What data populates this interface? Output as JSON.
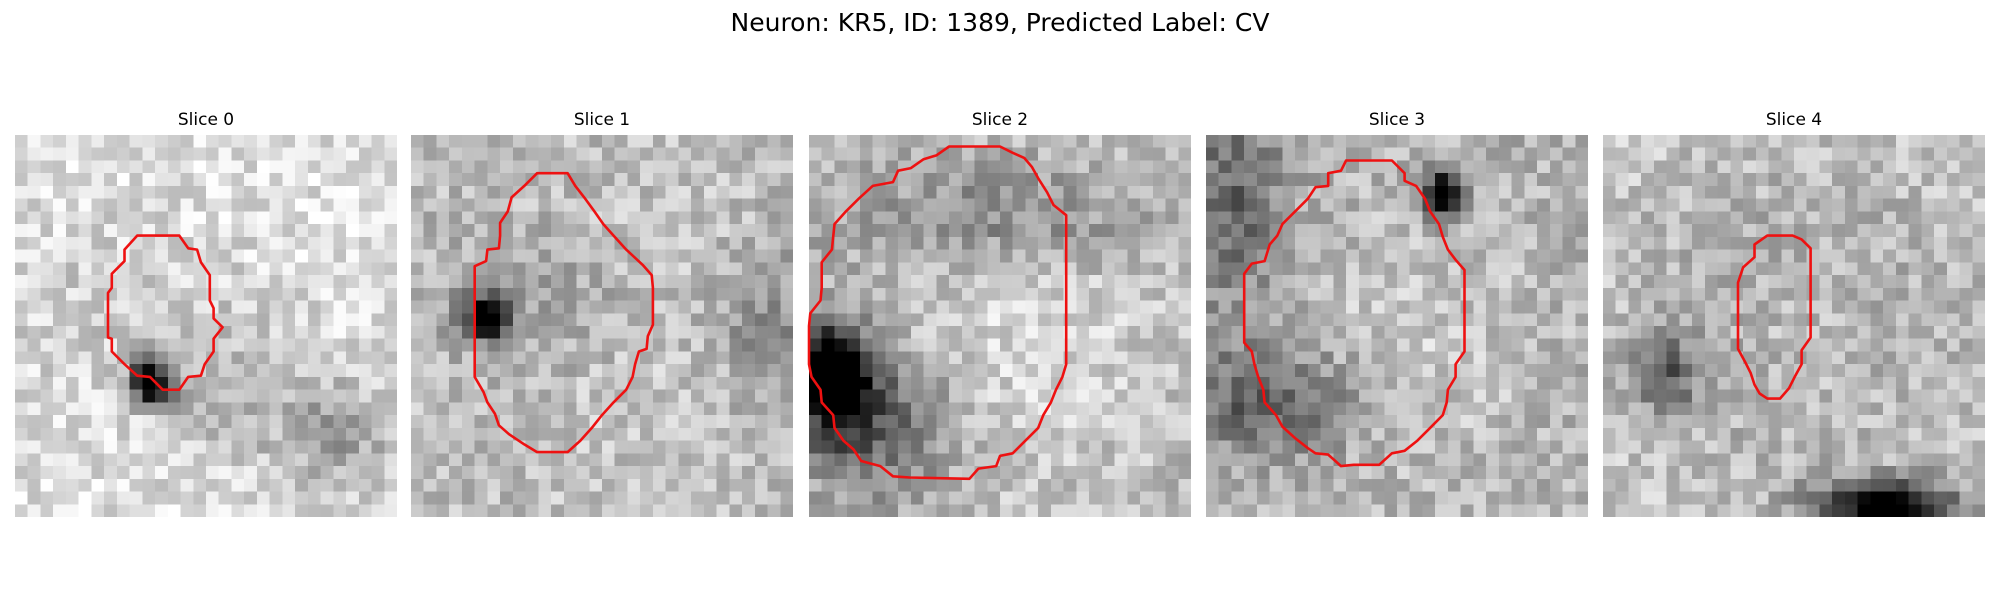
{
  "figure": {
    "title": "Neuron: KR5, ID: 1389, Predicted Label: CV"
  },
  "colors": {
    "contour": "#ee1111",
    "pixel_min": "#000000",
    "pixel_max": "#ffffff"
  },
  "slices": [
    {
      "title": "Slice 0",
      "contour_color": "red",
      "image": "grayscale-microscopy-patch",
      "contour_pixels": [
        [
          12.9,
          7.9
        ],
        [
          9.6,
          7.9
        ],
        [
          8.6,
          9.0
        ],
        [
          8.6,
          9.9
        ],
        [
          7.6,
          10.9
        ],
        [
          7.6,
          12.0
        ],
        [
          7.3,
          12.4
        ],
        [
          7.3,
          15.9
        ],
        [
          7.6,
          16.0
        ],
        [
          7.6,
          17.0
        ],
        [
          8.6,
          18.0
        ],
        [
          9.6,
          18.9
        ],
        [
          10.6,
          19.0
        ],
        [
          11.6,
          20.0
        ],
        [
          12.9,
          20.0
        ],
        [
          13.6,
          19.0
        ],
        [
          14.6,
          18.9
        ],
        [
          14.9,
          18.0
        ],
        [
          15.6,
          17.0
        ],
        [
          15.6,
          16.0
        ],
        [
          16.3,
          15.1
        ],
        [
          15.6,
          14.4
        ],
        [
          15.6,
          13.6
        ],
        [
          15.3,
          13.0
        ],
        [
          15.3,
          11.0
        ],
        [
          14.6,
          10.0
        ],
        [
          14.3,
          9.0
        ],
        [
          13.6,
          8.9
        ]
      ]
    },
    {
      "title": "Slice 1",
      "contour_color": "red",
      "image": "grayscale-microscopy-patch",
      "contour_pixels": [
        [
          12.3,
          3.0
        ],
        [
          9.9,
          3.0
        ],
        [
          8.9,
          4.0
        ],
        [
          7.9,
          4.9
        ],
        [
          7.6,
          6.0
        ],
        [
          7.0,
          6.9
        ],
        [
          7.0,
          7.9
        ],
        [
          6.9,
          8.9
        ],
        [
          6.0,
          9.0
        ],
        [
          5.9,
          9.9
        ],
        [
          5.0,
          10.3
        ],
        [
          5.0,
          19.0
        ],
        [
          5.7,
          20.2
        ],
        [
          6.0,
          21.0
        ],
        [
          6.6,
          21.9
        ],
        [
          6.9,
          22.8
        ],
        [
          7.7,
          23.5
        ],
        [
          8.9,
          24.3
        ],
        [
          9.9,
          24.9
        ],
        [
          12.3,
          24.9
        ],
        [
          13.3,
          24.0
        ],
        [
          14.2,
          23.0
        ],
        [
          15.0,
          22.0
        ],
        [
          15.9,
          21.0
        ],
        [
          16.9,
          20.0
        ],
        [
          17.4,
          19.0
        ],
        [
          17.6,
          18.0
        ],
        [
          17.9,
          17.0
        ],
        [
          18.5,
          16.8
        ],
        [
          18.6,
          15.8
        ],
        [
          19.0,
          14.9
        ],
        [
          19.0,
          12.0
        ],
        [
          18.9,
          11.0
        ],
        [
          18.2,
          10.2
        ],
        [
          16.9,
          9.0
        ],
        [
          16.0,
          8.0
        ],
        [
          15.1,
          7.0
        ],
        [
          14.4,
          6.0
        ],
        [
          13.6,
          4.9
        ],
        [
          12.9,
          4.0
        ]
      ]
    },
    {
      "title": "Slice 2",
      "contour_color": "red",
      "image": "grayscale-microscopy-patch",
      "contour_pixels": [
        [
          15.0,
          0.9
        ],
        [
          11.0,
          0.9
        ],
        [
          10.0,
          1.6
        ],
        [
          9.0,
          1.9
        ],
        [
          8.0,
          2.6
        ],
        [
          7.0,
          2.8
        ],
        [
          6.6,
          3.7
        ],
        [
          5.0,
          4.0
        ],
        [
          3.9,
          5.0
        ],
        [
          2.9,
          6.0
        ],
        [
          2.0,
          7.0
        ],
        [
          1.9,
          8.0
        ],
        [
          1.8,
          9.0
        ],
        [
          1.0,
          10.0
        ],
        [
          1.0,
          12.0
        ],
        [
          0.9,
          13.0
        ],
        [
          0.1,
          14.0
        ],
        [
          0.0,
          15.0
        ],
        [
          0.0,
          18.0
        ],
        [
          0.2,
          19.0
        ],
        [
          0.9,
          20.0
        ],
        [
          1.0,
          21.0
        ],
        [
          1.9,
          22.0
        ],
        [
          2.0,
          23.0
        ],
        [
          2.7,
          24.0
        ],
        [
          3.5,
          24.7
        ],
        [
          4.1,
          25.6
        ],
        [
          5.6,
          26.0
        ],
        [
          6.6,
          26.8
        ],
        [
          7.9,
          26.9
        ],
        [
          12.6,
          27.0
        ],
        [
          13.3,
          26.2
        ],
        [
          14.7,
          26.0
        ],
        [
          15.0,
          25.2
        ],
        [
          16.0,
          25.0
        ],
        [
          17.0,
          24.0
        ],
        [
          18.0,
          23.0
        ],
        [
          18.4,
          22.0
        ],
        [
          19.0,
          21.0
        ],
        [
          19.4,
          20.0
        ],
        [
          19.9,
          19.0
        ],
        [
          20.2,
          18.0
        ],
        [
          20.2,
          6.3
        ],
        [
          19.2,
          5.5
        ],
        [
          18.7,
          4.5
        ],
        [
          18.0,
          3.4
        ],
        [
          17.5,
          2.5
        ],
        [
          16.9,
          1.8
        ],
        [
          16.0,
          1.4
        ]
      ]
    },
    {
      "title": "Slice 3",
      "contour_color": "red",
      "image": "grayscale-microscopy-patch",
      "contour_pixels": [
        [
          14.6,
          2.0
        ],
        [
          11.0,
          2.0
        ],
        [
          10.6,
          2.8
        ],
        [
          9.6,
          3.0
        ],
        [
          9.6,
          4.0
        ],
        [
          8.6,
          4.1
        ],
        [
          8.0,
          5.0
        ],
        [
          7.0,
          6.0
        ],
        [
          6.0,
          7.0
        ],
        [
          5.6,
          7.9
        ],
        [
          5.0,
          8.6
        ],
        [
          4.6,
          9.9
        ],
        [
          3.6,
          10.1
        ],
        [
          3.0,
          10.9
        ],
        [
          3.0,
          16.3
        ],
        [
          3.6,
          17.0
        ],
        [
          3.8,
          18.0
        ],
        [
          4.1,
          19.0
        ],
        [
          4.5,
          20.0
        ],
        [
          4.6,
          21.0
        ],
        [
          5.5,
          22.0
        ],
        [
          6.0,
          22.9
        ],
        [
          7.0,
          23.8
        ],
        [
          8.0,
          24.6
        ],
        [
          8.6,
          25.0
        ],
        [
          9.6,
          25.1
        ],
        [
          10.6,
          26.0
        ],
        [
          11.6,
          25.9
        ],
        [
          13.6,
          25.9
        ],
        [
          14.6,
          25.0
        ],
        [
          15.6,
          24.8
        ],
        [
          16.6,
          24.0
        ],
        [
          17.6,
          23.0
        ],
        [
          18.6,
          22.0
        ],
        [
          18.9,
          21.0
        ],
        [
          19.0,
          20.0
        ],
        [
          19.6,
          19.0
        ],
        [
          19.6,
          18.0
        ],
        [
          20.3,
          17.0
        ],
        [
          20.3,
          10.6
        ],
        [
          19.6,
          9.8
        ],
        [
          19.0,
          9.0
        ],
        [
          18.6,
          8.0
        ],
        [
          18.3,
          7.0
        ],
        [
          17.6,
          6.0
        ],
        [
          17.2,
          5.0
        ],
        [
          16.5,
          4.0
        ],
        [
          15.6,
          3.6
        ],
        [
          15.6,
          3.0
        ]
      ]
    },
    {
      "title": "Slice 4",
      "contour_color": "red",
      "image": "grayscale-microscopy-patch",
      "contour_pixels": [
        [
          14.9,
          7.9
        ],
        [
          12.9,
          7.9
        ],
        [
          11.9,
          8.6
        ],
        [
          11.9,
          9.6
        ],
        [
          11.0,
          10.4
        ],
        [
          10.6,
          11.6
        ],
        [
          10.6,
          16.8
        ],
        [
          11.2,
          17.9
        ],
        [
          11.6,
          18.7
        ],
        [
          11.9,
          19.6
        ],
        [
          12.3,
          20.3
        ],
        [
          12.9,
          20.7
        ],
        [
          13.9,
          20.7
        ],
        [
          14.6,
          19.9
        ],
        [
          15.1,
          18.9
        ],
        [
          15.6,
          18.0
        ],
        [
          15.6,
          16.9
        ],
        [
          16.3,
          15.9
        ],
        [
          16.3,
          8.9
        ],
        [
          15.6,
          8.2
        ]
      ]
    }
  ]
}
